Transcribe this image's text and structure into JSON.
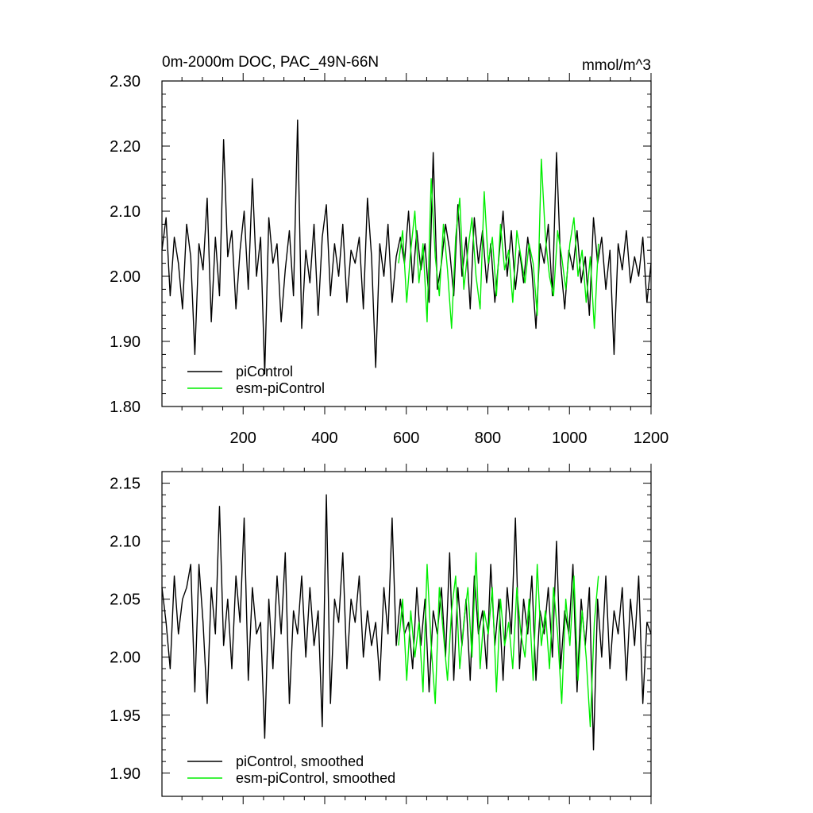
{
  "chart_data": [
    {
      "type": "line",
      "title": "0m-2000m DOC, PAC_49N-66N",
      "units": "mmol/m^3",
      "xlim": [
        1,
        1200
      ],
      "ylim": [
        1.8,
        2.3
      ],
      "xticks": [
        200,
        400,
        600,
        800,
        1000,
        1200
      ],
      "yticks": [
        1.8,
        1.9,
        2.0,
        2.1,
        2.2,
        2.3
      ],
      "ytick_labels": [
        "1.80",
        "1.90",
        "2.00",
        "2.10",
        "2.20",
        "2.30"
      ],
      "legend": {
        "position": "bottom-left",
        "entries": [
          "piControl",
          "esm-piControl"
        ]
      },
      "series": [
        {
          "name": "piControl",
          "color": "#000000",
          "x_start": 1,
          "x_end": 1200,
          "sampled_every": 10,
          "values": [
            2.04,
            2.09,
            1.97,
            2.06,
            2.02,
            1.95,
            2.08,
            2.03,
            1.88,
            2.05,
            2.01,
            2.12,
            1.93,
            2.06,
            1.97,
            2.21,
            2.03,
            2.07,
            1.95,
            2.04,
            2.1,
            1.98,
            2.15,
            2.0,
            2.06,
            1.85,
            2.09,
            2.02,
            2.05,
            1.93,
            2.01,
            2.07,
            1.97,
            2.24,
            1.92,
            2.04,
            1.99,
            2.08,
            1.94,
            2.06,
            2.11,
            1.97,
            2.05,
            2.0,
            2.08,
            1.96,
            2.04,
            2.02,
            2.06,
            1.95,
            2.12,
            2.03,
            1.86,
            2.05,
            2.0,
            2.08,
            1.96,
            2.03,
            2.06,
            2.02,
            2.1,
            1.99,
            2.07,
            2.01,
            2.05,
            1.96,
            2.19,
            1.98,
            2.02,
            2.08,
            2.04,
            1.97,
            2.11,
            2.0,
            2.06,
            1.95,
            2.09,
            2.02,
            2.07,
            1.99,
            2.05,
            1.96,
            2.03,
            2.1,
            2.0,
            2.07,
            1.98,
            2.04,
            1.99,
            2.06,
            2.01,
            1.92,
            2.05,
            2.02,
            2.08,
            1.97,
            2.19,
            2.02,
            1.95,
            2.04,
            2.01,
            2.07,
            1.99,
            2.03,
            1.94,
            2.09,
            2.02,
            2.06,
            1.98,
            2.04,
            1.88,
            2.05,
            2.01,
            2.07,
            1.99,
            2.03,
            2.0,
            2.06,
            1.96,
            2.02
          ]
        },
        {
          "name": "esm-piControl",
          "color": "#00ee00",
          "x_start": 581,
          "x_end": 1071,
          "sampled_every": 10,
          "values": [
            2.02,
            2.07,
            1.96,
            2.04,
            2.1,
            1.99,
            2.05,
            1.93,
            2.15,
            2.03,
            1.97,
            2.08,
            2.01,
            1.92,
            2.06,
            2.12,
            1.98,
            2.04,
            2.09,
            2.0,
            1.95,
            2.13,
            2.02,
            2.06,
            1.97,
            2.08,
            2.01,
            2.04,
            1.96,
            2.07,
            2.03,
            1.99,
            2.05,
            2.02,
            1.94,
            2.18,
            2.06,
            2.0,
            1.97,
            2.07,
            2.03,
            1.98,
            2.05,
            2.09,
            2.0,
            2.04,
            1.96,
            2.03,
            1.92,
            2.05
          ]
        }
      ]
    },
    {
      "type": "line",
      "xlim": [
        1,
        1200
      ],
      "ylim": [
        1.88,
        2.16
      ],
      "xticks": [
        200,
        400,
        600,
        800,
        1000,
        1200
      ],
      "yticks": [
        1.9,
        1.95,
        2.0,
        2.05,
        2.1,
        2.15
      ],
      "ytick_labels": [
        "1.90",
        "1.95",
        "2.00",
        "2.05",
        "2.10",
        "2.15"
      ],
      "legend": {
        "position": "bottom-left",
        "entries": [
          "piControl, smoothed",
          "esm-piControl, smoothed"
        ]
      },
      "series": [
        {
          "name": "piControl, smoothed",
          "color": "#000000",
          "x_start": 1,
          "x_end": 1200,
          "sampled_every": 10,
          "values": [
            2.06,
            2.03,
            1.99,
            2.07,
            2.02,
            2.05,
            2.06,
            2.08,
            1.97,
            2.08,
            2.03,
            1.96,
            2.06,
            2.02,
            2.13,
            2.01,
            2.05,
            1.99,
            2.07,
            2.03,
            2.12,
            1.98,
            2.06,
            2.02,
            2.03,
            1.93,
            2.05,
            1.99,
            2.07,
            2.02,
            2.09,
            1.96,
            2.04,
            2.02,
            2.07,
            2.0,
            2.06,
            2.01,
            2.04,
            1.94,
            2.14,
            1.96,
            2.05,
            2.03,
            2.09,
            1.99,
            2.05,
            2.03,
            2.07,
            2.0,
            2.04,
            2.01,
            2.03,
            1.98,
            2.06,
            2.02,
            2.12,
            2.01,
            2.05,
            2.02,
            2.03,
            1.99,
            2.06,
            2.01,
            2.05,
            1.97,
            2.04,
            2.02,
            2.06,
            2.0,
            2.09,
            1.98,
            2.06,
            2.01,
            2.05,
            1.98,
            2.07,
            2.02,
            2.04,
            1.99,
            2.08,
            2.01,
            2.05,
            1.98,
            2.06,
            2.02,
            2.12,
            1.99,
            2.05,
            2.02,
            2.07,
            1.98,
            2.04,
            2.02,
            2.06,
            2.0,
            2.1,
            1.99,
            2.04,
            2.02,
            2.08,
            1.97,
            2.05,
            2.01,
            2.06,
            1.92,
            2.05,
            2.0,
            2.07,
            1.99,
            2.04,
            2.02,
            2.06,
            1.98,
            2.05,
            2.01,
            2.07,
            1.96,
            2.03,
            2.02
          ]
        },
        {
          "name": "esm-piControl, smoothed",
          "color": "#00ee00",
          "x_start": 581,
          "x_end": 1071,
          "sampled_every": 10,
          "values": [
            2.01,
            2.05,
            1.98,
            2.04,
            2.0,
            2.03,
            1.97,
            2.08,
            2.01,
            1.96,
            2.06,
            2.02,
            1.98,
            2.04,
            2.07,
            1.99,
            2.03,
            2.06,
            2.0,
            2.09,
            1.99,
            2.04,
            2.02,
            2.06,
            1.97,
            2.05,
            2.01,
            2.03,
            1.99,
            2.06,
            2.02,
            2.0,
            2.05,
            1.98,
            2.08,
            2.01,
            2.04,
            1.99,
            2.06,
            2.02,
            1.96,
            2.05,
            2.01,
            2.07,
            1.98,
            2.04,
            2.0,
            1.94,
            2.03,
            2.07
          ]
        }
      ]
    }
  ]
}
